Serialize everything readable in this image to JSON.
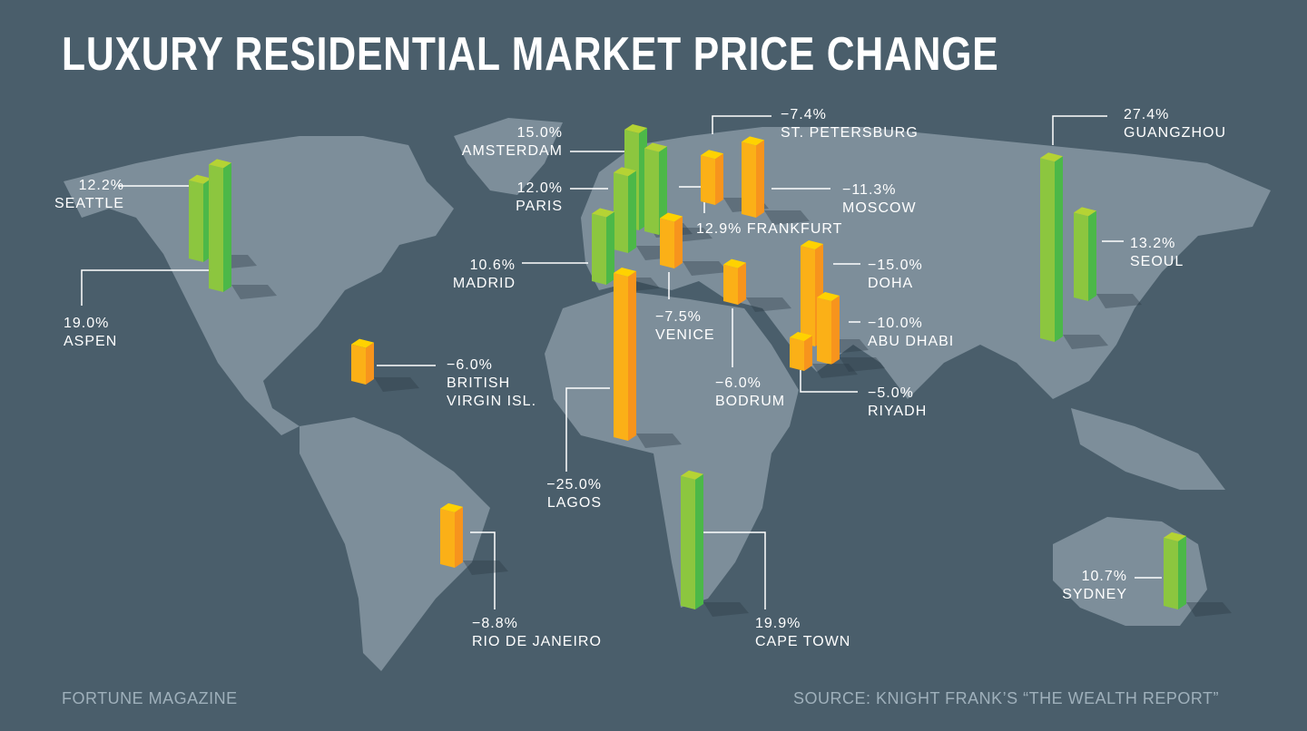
{
  "title": "LUXURY RESIDENTIAL MARKET PRICE CHANGE",
  "footer": {
    "left": "FORTUNE MAGAZINE",
    "right": "SOURCE: KNIGHT FRANK’S “THE WEALTH REPORT”"
  },
  "colors": {
    "background": "#4a5e6b",
    "land": "#7d8e9a",
    "positive": "#8cc63f",
    "negative": "#fbb017"
  },
  "chart_data": {
    "type": "bar",
    "title": "LUXURY RESIDENTIAL MARKET PRICE CHANGE",
    "unit": "%",
    "categories": [
      "SEATTLE",
      "ASPEN",
      "AMSTERDAM",
      "PARIS",
      "FRANKFURT",
      "MADRID",
      "VENICE",
      "ST. PETERSBURG",
      "MOSCOW",
      "BODRUM",
      "DOHA",
      "ABU DHABI",
      "RIYADH",
      "BRITISH VIRGIN ISL.",
      "LAGOS",
      "RIO DE JANEIRO",
      "CAPE TOWN",
      "GUANGZHOU",
      "SEOUL",
      "SYDNEY"
    ],
    "values": [
      12.2,
      19.0,
      15.0,
      12.0,
      12.9,
      10.6,
      -7.5,
      -7.4,
      -11.3,
      -6.0,
      -15.0,
      -10.0,
      -5.0,
      -6.0,
      -25.0,
      -8.8,
      19.9,
      27.4,
      13.2,
      10.7
    ],
    "labels": [
      "12.2%",
      "19.0%",
      "15.0%",
      "12.0%",
      "12.9%",
      "10.6%",
      "−7.5%",
      "−7.4%",
      "−11.3%",
      "−6.0%",
      "−15.0%",
      "−10.0%",
      "−5.0%",
      "−6.0%",
      "−25.0%",
      "−8.8%",
      "19.9%",
      "27.4%",
      "13.2%",
      "10.7%"
    ]
  }
}
